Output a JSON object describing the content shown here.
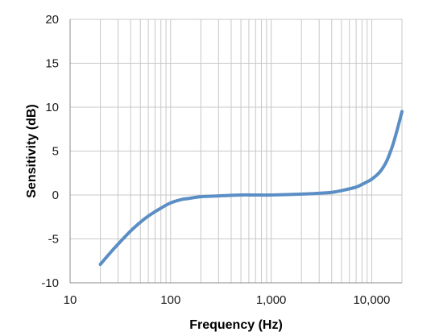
{
  "chart_data": {
    "type": "line",
    "title": "",
    "xlabel": "Frequency (Hz)",
    "ylabel": "Sensitivity (dB)",
    "x_scale": "log",
    "xlim": [
      10,
      20000
    ],
    "ylim": [
      -10,
      20
    ],
    "x_ticks": [
      10,
      100,
      1000,
      10000
    ],
    "x_tick_labels": [
      "10",
      "100",
      "1,000",
      "10,000"
    ],
    "y_ticks": [
      -10,
      -5,
      0,
      5,
      10,
      15,
      20
    ],
    "y_tick_labels": [
      "-10",
      "-5",
      "0",
      "5",
      "10",
      "15",
      "20"
    ],
    "grid": true,
    "legend": "none",
    "series": [
      {
        "color": "#5b8ec5",
        "x": [
          20,
          25,
          30,
          40,
          50,
          60,
          70,
          80,
          100,
          130,
          150,
          200,
          300,
          500,
          700,
          1000,
          2000,
          3000,
          4000,
          5000,
          6000,
          7000,
          8000,
          9000,
          10000,
          12000,
          14000,
          16000,
          18000,
          20000
        ],
        "y": [
          -7.9,
          -6.6,
          -5.6,
          -4.1,
          -3.1,
          -2.4,
          -1.9,
          -1.5,
          -0.9,
          -0.5,
          -0.4,
          -0.2,
          -0.1,
          0,
          0,
          0,
          0.1,
          0.2,
          0.3,
          0.5,
          0.7,
          0.9,
          1.2,
          1.5,
          1.8,
          2.6,
          3.8,
          5.5,
          7.5,
          9.5
        ]
      }
    ]
  }
}
